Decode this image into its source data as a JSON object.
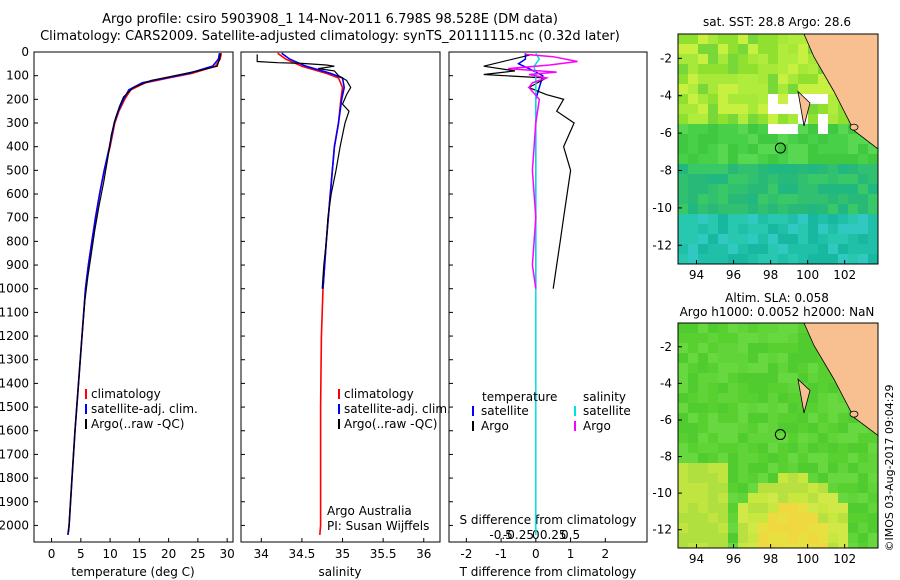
{
  "header": {
    "title_line1": "Argo profile: csiro 5903908_1 14-Nov-2011 6.798S 98.528E (DM data)",
    "title_line2": "Climatology: CARS2009. Satellite-adjusted climatology: synTS_20111115.nc (0.32d later)"
  },
  "side_label": "©IMOS 03-Aug-2017 09:04:29",
  "colors": {
    "climatology": "#ff0000",
    "satellite": "#0000ff",
    "argo": "#000000",
    "salinity_sat": "#00e0e0",
    "salinity_argo": "#ff00ff"
  },
  "chart_data": [
    {
      "type": "line",
      "panel": "temperature",
      "xlabel": "temperature (deg C)",
      "xlim": [
        -3,
        31
      ],
      "ylim": [
        2070,
        0
      ],
      "xticks": [
        0,
        5,
        10,
        15,
        20,
        25,
        30
      ],
      "yticks": [
        0,
        100,
        200,
        300,
        400,
        500,
        600,
        700,
        800,
        900,
        1000,
        1100,
        1200,
        1300,
        1400,
        1500,
        1600,
        1700,
        1800,
        1900,
        2000
      ],
      "legend": [
        "climatology",
        "satellite-adj. clim.",
        "Argo(..raw -QC)"
      ],
      "series": [
        {
          "name": "climatology",
          "points": [
            [
              29.0,
              5
            ],
            [
              28.8,
              30
            ],
            [
              28.0,
              60
            ],
            [
              24.0,
              90
            ],
            [
              20.0,
              110
            ],
            [
              16.0,
              130
            ],
            [
              13.5,
              160
            ],
            [
              12.5,
              200
            ],
            [
              11.5,
              250
            ],
            [
              10.8,
              300
            ],
            [
              10.0,
              400
            ],
            [
              9.0,
              500
            ],
            [
              8.2,
              600
            ],
            [
              7.5,
              700
            ],
            [
              6.9,
              800
            ],
            [
              6.3,
              900
            ],
            [
              5.8,
              1000
            ],
            [
              5.2,
              1200
            ],
            [
              4.6,
              1400
            ],
            [
              4.0,
              1600
            ],
            [
              3.5,
              1800
            ],
            [
              3.0,
              2000
            ],
            [
              2.8,
              2040
            ]
          ]
        },
        {
          "name": "satellite-adj. clim.",
          "points": [
            [
              28.7,
              5
            ],
            [
              28.5,
              30
            ],
            [
              27.5,
              60
            ],
            [
              23.5,
              90
            ],
            [
              19.5,
              110
            ],
            [
              15.5,
              130
            ],
            [
              13.2,
              160
            ],
            [
              12.3,
              200
            ],
            [
              11.4,
              250
            ],
            [
              10.7,
              300
            ],
            [
              9.9,
              400
            ],
            [
              9.0,
              500
            ],
            [
              8.2,
              600
            ],
            [
              7.5,
              700
            ],
            [
              6.9,
              800
            ],
            [
              6.3,
              900
            ],
            [
              5.8,
              1000
            ],
            [
              5.2,
              1200
            ],
            [
              4.6,
              1400
            ],
            [
              4.0,
              1600
            ],
            [
              3.5,
              1800
            ],
            [
              3.0,
              2000
            ],
            [
              2.8,
              2040
            ]
          ]
        },
        {
          "name": "Argo(..raw -QC)",
          "points": [
            [
              28.9,
              5
            ],
            [
              28.7,
              30
            ],
            [
              28.3,
              60
            ],
            [
              25.0,
              80
            ],
            [
              21.0,
              100
            ],
            [
              17.0,
              120
            ],
            [
              14.0,
              150
            ],
            [
              12.3,
              190
            ],
            [
              11.6,
              230
            ],
            [
              10.9,
              280
            ],
            [
              10.2,
              350
            ],
            [
              9.6,
              450
            ],
            [
              8.9,
              550
            ],
            [
              8.1,
              650
            ],
            [
              7.4,
              750
            ],
            [
              6.8,
              850
            ],
            [
              6.2,
              950
            ],
            [
              5.7,
              1050
            ],
            [
              5.2,
              1200
            ],
            [
              4.6,
              1400
            ],
            [
              4.0,
              1600
            ],
            [
              3.5,
              1800
            ],
            [
              3.0,
              2000
            ],
            [
              2.9,
              2030
            ]
          ]
        }
      ]
    },
    {
      "type": "line",
      "panel": "salinity",
      "xlabel": "salinity",
      "xlim": [
        33.75,
        36.2
      ],
      "ylim": [
        2070,
        0
      ],
      "xticks": [
        34,
        34.5,
        35,
        35.5,
        36
      ],
      "legend": [
        "climatology",
        "satellite-adj. clim.",
        "Argo(..raw -QC)"
      ],
      "annotation": [
        "Argo Australia",
        "PI: Susan Wijffels"
      ],
      "series": [
        {
          "name": "climatology",
          "points": [
            [
              34.2,
              5
            ],
            [
              34.3,
              30
            ],
            [
              34.5,
              60
            ],
            [
              34.8,
              90
            ],
            [
              34.95,
              110
            ],
            [
              35.0,
              150
            ],
            [
              34.98,
              200
            ],
            [
              34.95,
              300
            ],
            [
              34.9,
              400
            ],
            [
              34.85,
              600
            ],
            [
              34.8,
              800
            ],
            [
              34.76,
              1000
            ],
            [
              34.74,
              1200
            ],
            [
              34.73,
              1500
            ],
            [
              34.73,
              2000
            ],
            [
              34.72,
              2040
            ]
          ]
        },
        {
          "name": "satellite-adj. clim.",
          "points": [
            [
              34.25,
              5
            ],
            [
              34.35,
              30
            ],
            [
              34.55,
              60
            ],
            [
              34.85,
              90
            ],
            [
              35.0,
              110
            ],
            [
              35.02,
              150
            ],
            [
              34.99,
              200
            ],
            [
              34.95,
              300
            ],
            [
              34.9,
              400
            ],
            [
              34.85,
              600
            ],
            [
              34.8,
              800
            ],
            [
              34.76,
              1000
            ]
          ]
        },
        {
          "name": "Argo(..raw -QC)",
          "points": [
            [
              33.95,
              10
            ],
            [
              33.95,
              40
            ],
            [
              34.2,
              45
            ],
            [
              34.5,
              48
            ],
            [
              34.8,
              55
            ],
            [
              34.9,
              60
            ],
            [
              34.7,
              70
            ],
            [
              34.9,
              80
            ],
            [
              34.95,
              100
            ],
            [
              35.05,
              120
            ],
            [
              35.1,
              150
            ],
            [
              35.05,
              180
            ],
            [
              35.0,
              220
            ],
            [
              35.08,
              250
            ],
            [
              35.03,
              300
            ],
            [
              34.97,
              400
            ],
            [
              34.92,
              500
            ],
            [
              34.86,
              600
            ],
            [
              34.82,
              700
            ],
            [
              34.8,
              800
            ],
            [
              34.77,
              900
            ],
            [
              34.75,
              1000
            ]
          ]
        }
      ]
    },
    {
      "type": "line",
      "panel": "difference",
      "xlabel": "T difference from climatology",
      "xlabel2": "S difference from climatology",
      "xlim": [
        -2.5,
        3.2
      ],
      "ylim": [
        2070,
        0
      ],
      "xticks": [
        "-2",
        "-1",
        "0",
        "1",
        "2"
      ],
      "sticks": [
        "-0.5",
        "-0.25",
        "0",
        "0.25",
        "0.5"
      ],
      "legend_headers": [
        "temperature",
        "salinity"
      ],
      "legend": [
        "satellite",
        "Argo",
        "satellite",
        "Argo"
      ],
      "series": [
        {
          "name": "temperature satellite",
          "points": [
            [
              -0.3,
              5
            ],
            [
              -0.3,
              30
            ],
            [
              -0.5,
              50
            ],
            [
              -0.2,
              70
            ],
            [
              0.2,
              100
            ],
            [
              0.1,
              150
            ],
            [
              0,
              200
            ],
            [
              0,
              400
            ],
            [
              0,
              600
            ],
            [
              0,
              800
            ],
            [
              0,
              1000
            ]
          ]
        },
        {
          "name": "temperature Argo",
          "points": [
            [
              -0.1,
              10
            ],
            [
              -1.5,
              60
            ],
            [
              -0.6,
              80
            ],
            [
              -1.5,
              95
            ],
            [
              0.3,
              110
            ],
            [
              -0.2,
              150
            ],
            [
              0.3,
              180
            ],
            [
              0.8,
              200
            ],
            [
              0.6,
              250
            ],
            [
              1.1,
              300
            ],
            [
              0.8,
              400
            ],
            [
              1.0,
              500
            ],
            [
              0.9,
              600
            ],
            [
              0.8,
              700
            ],
            [
              0.7,
              800
            ],
            [
              0.6,
              900
            ],
            [
              0.5,
              1000
            ]
          ]
        },
        {
          "name": "salinity satellite",
          "points": [
            [
              0.0,
              5
            ],
            [
              0.1,
              30
            ],
            [
              -0.05,
              60
            ],
            [
              0.0,
              100
            ],
            [
              0.0,
              200
            ],
            [
              0.0,
              500
            ],
            [
              0.0,
              800
            ],
            [
              0.0,
              1200
            ],
            [
              0.0,
              1600
            ],
            [
              0.0,
              2040
            ]
          ]
        },
        {
          "name": "salinity Argo",
          "points": [
            [
              -0.3,
              10
            ],
            [
              0.5,
              20
            ],
            [
              1.2,
              40
            ],
            [
              0.4,
              55
            ],
            [
              -0.8,
              70
            ],
            [
              0.6,
              85
            ],
            [
              -0.2,
              95
            ],
            [
              0.3,
              110
            ],
            [
              -0.1,
              130
            ],
            [
              -0.2,
              150
            ],
            [
              0.1,
              200
            ],
            [
              0.0,
              300
            ],
            [
              -0.1,
              500
            ],
            [
              0.0,
              700
            ],
            [
              -0.1,
              900
            ],
            [
              0.0,
              1000
            ]
          ]
        }
      ]
    },
    {
      "type": "heatmap",
      "panel": "sst_map",
      "title": "sat. SST: 28.8 Argo: 28.6",
      "xticks": [
        "94",
        "96",
        "98",
        "100",
        "102"
      ],
      "yticks": [
        "-2",
        "-4",
        "-6",
        "-8",
        "-10",
        "-12"
      ],
      "argo_position": [
        98.528,
        -6.798
      ]
    },
    {
      "type": "heatmap",
      "panel": "sla_map",
      "title1": "Altim. SLA: 0.058",
      "title2": "Argo h1000: 0.0052 h2000: NaN",
      "xticks": [
        "94",
        "96",
        "98",
        "100",
        "102"
      ],
      "yticks": [
        "-2",
        "-4",
        "-6",
        "-8",
        "-10",
        "-12"
      ],
      "argo_position": [
        98.528,
        -6.798
      ]
    }
  ]
}
